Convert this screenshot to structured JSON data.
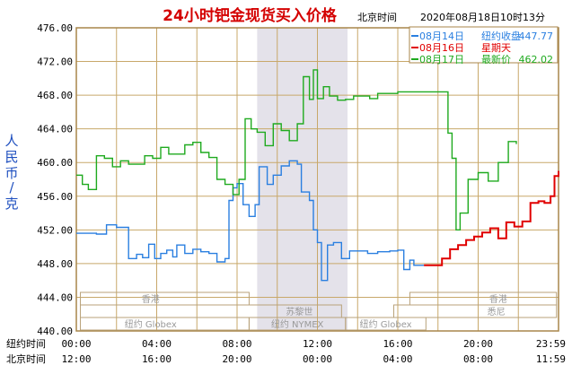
{
  "header": {
    "title": "24小时钯金现货买入价格",
    "tz_label": "北京时间",
    "datetime": "2020年08月18日10时13分"
  },
  "legend": [
    {
      "date": "08月14日",
      "desc": "纽约收盘",
      "value": "447.77",
      "color": "#2a7fe0"
    },
    {
      "date": "08月16日",
      "desc": "星期天",
      "value": "",
      "color": "#e00000"
    },
    {
      "date": "08月17日",
      "desc": "最新价",
      "value": "462.02",
      "color": "#1faa1f"
    }
  ],
  "axis": {
    "ylabel_chars": [
      "人",
      "民",
      "币",
      "/",
      "克"
    ],
    "ylim": [
      440,
      476
    ],
    "yticks": [
      "476.00",
      "472.00",
      "468.00",
      "464.00",
      "460.00",
      "456.00",
      "452.00",
      "448.00",
      "444.00",
      "440.00"
    ],
    "xrow1_label": "纽约时间",
    "xrow1": [
      "00:00",
      "04:00",
      "08:00",
      "12:00",
      "16:00",
      "20:00",
      "23:59"
    ],
    "xrow2_label": "北京时间",
    "xrow2": [
      "12:00",
      "16:00",
      "20:00",
      "00:00",
      "04:00",
      "08:00",
      "11:59"
    ]
  },
  "sessions": [
    {
      "name": "香港",
      "row": 0
    },
    {
      "name": "香港",
      "row": 0
    },
    {
      "name": "苏黎世",
      "row": 1
    },
    {
      "name": "悉尼",
      "row": 1
    },
    {
      "name": "纽约 Globex",
      "row": 2
    },
    {
      "name": "纽约 NYMEX",
      "row": 2
    },
    {
      "name": "纽约 Globex",
      "row": 2
    }
  ],
  "colors": {
    "plot_bg": "#ffffff",
    "grid": "#c8a86a",
    "frame": "#a8864a",
    "highlight": "#e4e2ea",
    "session_box": "#b8a27a"
  },
  "chart_data": {
    "type": "line",
    "x_unit": "hours (New York time)",
    "xlim": [
      0,
      24
    ],
    "ylim": [
      440,
      476
    ],
    "series": [
      {
        "name": "08月14日",
        "color": "#2a7fe0",
        "x": [
          0,
          0.5,
          1,
          1.5,
          2,
          2.6,
          3,
          3.3,
          3.6,
          3.9,
          4.2,
          4.5,
          4.8,
          5,
          5.4,
          5.8,
          6.2,
          6.6,
          7,
          7.4,
          7.6,
          7.8,
          8,
          8.3,
          8.6,
          8.9,
          9.1,
          9.5,
          9.8,
          10.2,
          10.6,
          11,
          11.2,
          11.6,
          11.8,
          12,
          12.2,
          12.5,
          12.8,
          13.2,
          13.6,
          14,
          14.5,
          15,
          15.6,
          16,
          16.3,
          16.6,
          16.8,
          17,
          17.3
        ],
        "y": [
          451.6,
          451.6,
          451.5,
          452.6,
          452.3,
          448.6,
          449.1,
          448.7,
          450.3,
          448.6,
          449.2,
          449.6,
          448.8,
          450.2,
          449.2,
          449.7,
          449.4,
          449.2,
          448.2,
          448.6,
          455.5,
          457.0,
          457.5,
          455.0,
          453.6,
          455.0,
          459.5,
          457.4,
          458.5,
          459.6,
          460.2,
          459.8,
          456.5,
          455.5,
          452.0,
          450.5,
          446.0,
          450.2,
          450.5,
          448.6,
          449.5,
          449.5,
          449.2,
          449.4,
          449.5,
          449.6,
          447.3,
          448.4,
          447.8,
          447.8,
          447.8
        ]
      },
      {
        "name": "08月16日",
        "color": "#e00000",
        "x": [
          17.3,
          17.8,
          18.2,
          18.6,
          19,
          19.4,
          19.8,
          20.2,
          20.6,
          21,
          21.4,
          21.8,
          22.2,
          22.6,
          23,
          23.3,
          23.6,
          23.8,
          24
        ],
        "y": [
          447.8,
          447.8,
          448.6,
          449.7,
          450.2,
          450.8,
          451.2,
          451.7,
          452.2,
          451.0,
          452.9,
          452.4,
          453.0,
          455.2,
          455.4,
          455.2,
          456.0,
          458.4,
          459.0
        ]
      },
      {
        "name": "08月17日",
        "color": "#1faa1f",
        "x": [
          0,
          0.3,
          0.6,
          1,
          1.4,
          1.8,
          2.2,
          2.6,
          3,
          3.4,
          3.8,
          4.2,
          4.6,
          5,
          5.4,
          5.8,
          6.2,
          6.6,
          7,
          7.4,
          7.8,
          8.1,
          8.4,
          8.7,
          9.0,
          9.4,
          9.8,
          10.2,
          10.6,
          11,
          11.3,
          11.6,
          11.8,
          12.0,
          12.3,
          12.6,
          13,
          13.4,
          13.8,
          14.2,
          14.6,
          15,
          15.5,
          16,
          16.5,
          17,
          17.5,
          18,
          18.5,
          18.7,
          18.9,
          19.1,
          19.5,
          20,
          20.5,
          21,
          21.5,
          21.9
        ],
        "y": [
          458.5,
          457.4,
          456.8,
          460.8,
          460.5,
          459.5,
          460.2,
          459.8,
          459.8,
          460.8,
          460.5,
          461.8,
          461.0,
          461.0,
          462.1,
          462.4,
          461.2,
          460.6,
          458.0,
          457.4,
          456.2,
          458.0,
          465.2,
          464.0,
          463.6,
          462.0,
          464.6,
          463.8,
          462.6,
          464.6,
          470.2,
          467.5,
          471.0,
          467.6,
          469.0,
          467.9,
          467.4,
          467.5,
          467.9,
          467.9,
          467.6,
          468.2,
          468.2,
          468.4,
          468.4,
          468.4,
          468.4,
          468.4,
          463.5,
          460.5,
          452.0,
          454.0,
          458.0,
          458.8,
          457.8,
          460.0,
          462.5,
          462.2
        ]
      }
    ]
  }
}
